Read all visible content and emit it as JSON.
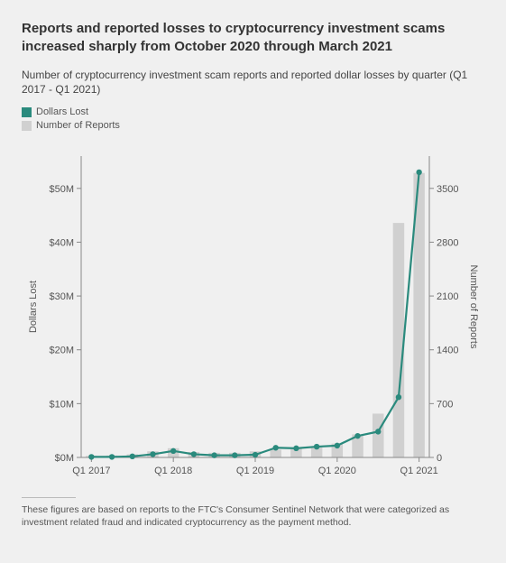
{
  "title": "Reports and reported losses to cryptocurrency investment scams increased sharply from October 2020 through March 2021",
  "subtitle": "Number of cryptocurrency investment scam reports and reported dollar losses by quarter (Q1 2017 - Q1 2021)",
  "footnote": "These figures are based on reports to the FTC's Consumer Sentinel Network that were categorized as investment related fraud and indicated cryptocurrency as the payment method.",
  "legend": {
    "line_label": "Dollars Lost",
    "bar_label": "Number of Reports"
  },
  "chart": {
    "type": "bar+line",
    "background_color": "#f0f0f0",
    "axis_color": "#888888",
    "tick_color": "#888888",
    "tick_font_size": 11,
    "axis_label_font_size": 11,
    "line_color": "#2a8a7d",
    "line_width": 2.2,
    "marker_size": 3.2,
    "bar_color": "#d0d0d0",
    "bar_width_ratio": 0.55,
    "left_axis": {
      "label": "Dollars Lost",
      "ticks": [
        0,
        10,
        20,
        30,
        40,
        50
      ],
      "tick_labels": [
        "$0M",
        "$10M",
        "$20M",
        "$30M",
        "$40M",
        "$50M"
      ],
      "ylim": [
        0,
        56
      ]
    },
    "right_axis": {
      "label": "Number of Reports",
      "ticks": [
        0,
        700,
        1400,
        2100,
        2800,
        3500
      ],
      "tick_labels": [
        "0",
        "700",
        "1400",
        "2100",
        "2800",
        "3500"
      ],
      "ylim": [
        0,
        3920
      ]
    },
    "x_axis": {
      "tick_labels": [
        "Q1 2017",
        "Q1 2018",
        "Q1 2019",
        "Q1 2020",
        "Q1 2021"
      ],
      "tick_indices": [
        0,
        4,
        8,
        12,
        16
      ]
    },
    "categories": [
      "2017Q1",
      "2017Q2",
      "2017Q3",
      "2017Q4",
      "2018Q1",
      "2018Q2",
      "2018Q3",
      "2018Q4",
      "2019Q1",
      "2019Q2",
      "2019Q3",
      "2019Q4",
      "2020Q1",
      "2020Q2",
      "2020Q3",
      "2020Q4",
      "2021Q1"
    ],
    "bars_reports": [
      20,
      25,
      40,
      80,
      120,
      70,
      60,
      60,
      80,
      100,
      120,
      130,
      180,
      300,
      570,
      3050,
      3700
    ],
    "line_dollars_m": [
      0.1,
      0.1,
      0.2,
      0.6,
      1.2,
      0.6,
      0.4,
      0.4,
      0.5,
      1.8,
      1.7,
      2.0,
      2.2,
      4.0,
      4.8,
      11.2,
      53.0
    ]
  }
}
